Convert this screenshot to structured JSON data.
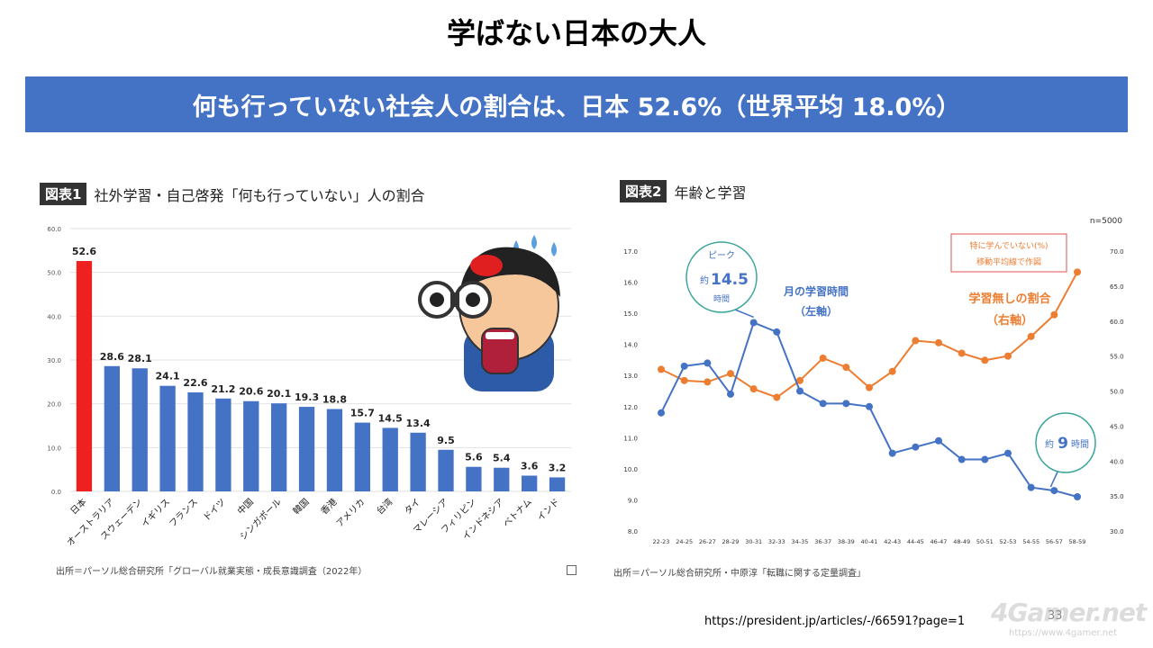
{
  "page": {
    "title": "学ばない日本の大人",
    "banner": "何も行っていない社会人の割合は、日本 52.6%（世界平均 18.0%）",
    "url": "https://president.jp/articles/-/66591?page=1",
    "page_number": "33",
    "watermark": "4Gamer.net",
    "watermark_sub": "https://www.4gamer.net"
  },
  "fig1": {
    "tag": "図表1",
    "title": "社外学習・自己啓発「何も行っていない」人の割合",
    "source": "出所＝パーソル総合研究所「グローバル就業実態・成長意識調査（2022年）",
    "colors": {
      "highlight": "#ee2020",
      "bar": "#4472c4"
    }
  },
  "fig2": {
    "tag": "図表2",
    "title": "年齢と学習",
    "n_label": "n=5000",
    "legend_box": [
      "特に学んでいない(%)",
      "移動平均線で作図"
    ],
    "label_hours": [
      "月の学習時間",
      "（左軸）"
    ],
    "label_none": [
      "学習無しの割合",
      "（右軸）"
    ],
    "peak_bubble": [
      "ピーク",
      "約",
      "14.5",
      "時間"
    ],
    "end_bubble": [
      "約",
      "9",
      "時間"
    ],
    "source": "出所＝パーソル総合研究所・中原淳「転職に関する定量調査」",
    "colors": {
      "hours": "#4472c4",
      "none": "#ed7d31",
      "legend_border": "#e05050",
      "bubble_border": "#3aa59a"
    }
  },
  "chart_data": [
    {
      "type": "bar",
      "categories": [
        "日本",
        "オーストラリア",
        "スウェーデン",
        "イギリス",
        "フランス",
        "ドイツ",
        "中国",
        "シンガポール",
        "韓国",
        "香港",
        "アメリカ",
        "台湾",
        "タイ",
        "マレーシア",
        "フィリピン",
        "インドネシア",
        "ベトナム",
        "インド"
      ],
      "values": [
        52.6,
        28.6,
        28.1,
        24.1,
        22.6,
        21.2,
        20.6,
        20.1,
        19.3,
        18.8,
        15.7,
        14.5,
        13.4,
        9.5,
        5.6,
        5.4,
        3.6,
        3.2
      ],
      "value_labels": [
        "52.6",
        "28.6",
        "28.1",
        "24.1",
        "22.6",
        "21.2",
        "20.6",
        "20.1",
        "19.3",
        "18.8",
        "15.7",
        "14.5",
        "13.4",
        "9.5",
        "5.6",
        "5.4",
        "3.6",
        "3.2"
      ],
      "ylim": [
        0,
        60
      ],
      "yticks": [
        "0.0",
        "10.0",
        "20.0",
        "30.0",
        "40.0",
        "50.0",
        "60.0"
      ],
      "grid": true
    },
    {
      "type": "line",
      "x": [
        "22-23",
        "24-25",
        "26-27",
        "28-29",
        "30-31",
        "32-33",
        "34-35",
        "36-37",
        "38-39",
        "40-41",
        "42-43",
        "44-45",
        "46-47",
        "48-49",
        "50-51",
        "52-53",
        "54-55",
        "56-57",
        "58-59"
      ],
      "series": [
        {
          "axis": "left",
          "values": [
            11.8,
            13.3,
            13.4,
            12.4,
            14.7,
            14.4,
            12.5,
            12.1,
            12.1,
            12.0,
            10.5,
            10.7,
            10.9,
            10.3,
            10.3,
            10.5,
            9.4,
            9.3,
            9.1
          ]
        },
        {
          "axis": "right",
          "values": [
            53.1,
            51.5,
            51.3,
            52.5,
            50.3,
            49.1,
            51.5,
            54.7,
            53.4,
            50.5,
            52.8,
            57.2,
            56.9,
            55.4,
            54.4,
            55.0,
            57.8,
            60.9,
            67.0
          ]
        }
      ],
      "ylim_left": [
        8.0,
        17.0
      ],
      "yticks_left": [
        "8.0",
        "9.0",
        "10.0",
        "11.0",
        "12.0",
        "13.0",
        "14.0",
        "15.0",
        "16.0",
        "17.0"
      ],
      "ylim_right": [
        30.0,
        70.0
      ],
      "yticks_right": [
        "30.0",
        "35.0",
        "40.0",
        "45.0",
        "50.0",
        "55.0",
        "60.0",
        "65.0",
        "70.0"
      ],
      "grid": false
    }
  ]
}
